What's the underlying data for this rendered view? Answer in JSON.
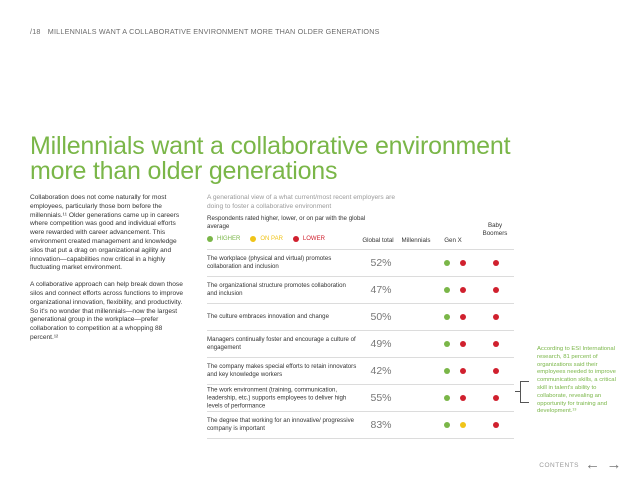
{
  "header": {
    "page_number": "/18",
    "section": "MILLENNIALS WANT A COLLABORATIVE ENVIRONMENT MORE THAN OLDER GENERATIONS"
  },
  "title": {
    "line1": "Millennials want a collaborative environment",
    "line2": "more than older generations"
  },
  "body": {
    "p1": "Collaboration does not come naturally for most employees, particularly those born before the millennials.¹¹ Older generations came up in careers where competition was good and individual efforts were rewarded with career advancement. This environment created management and knowledge silos that put a drag on organizational agility and innovation—capabilities now critical in a highly fluctuating market environment.",
    "p2": "A collaborative approach can help break down those silos and connect efforts across functions to improve organizational innovation, flexibility, and productivity. So it's no wonder that millennials—now the largest generational group in the workplace—prefer collaboration to competition at a whopping 88 percent.¹²"
  },
  "chart": {
    "subtitle": "A generational view of a what current/most recent employers are doing to foster a collaborative environment",
    "respondents": "Respondents rated higher, lower, or on par with the global average",
    "legend": {
      "higher": "HIGHER",
      "onpar": "ON PAR",
      "lower": "LOWER"
    },
    "columns": {
      "global": "Global total",
      "millennials": "Millennials",
      "genx": "Gen X",
      "boomers_1": "Baby",
      "boomers_2": "Boomers"
    }
  },
  "colors": {
    "higher": "#7ab648",
    "onpar": "#f0c419",
    "lower": "#d0202e",
    "accent": "#7ab648"
  },
  "rows": [
    {
      "label": "The workplace (physical and virtual) promotes collaboration and inclusion",
      "pct": "52%",
      "ratings": [
        "higher",
        "lower",
        "lower"
      ]
    },
    {
      "label": "The organizational structure promotes collaboration and inclusion",
      "pct": "47%",
      "ratings": [
        "higher",
        "lower",
        "lower"
      ]
    },
    {
      "label": "The culture embraces innovation and change",
      "pct": "50%",
      "ratings": [
        "higher",
        "lower",
        "lower"
      ]
    },
    {
      "label": "Managers continually foster and encourage a culture of engagement",
      "pct": "49%",
      "ratings": [
        "higher",
        "lower",
        "lower"
      ]
    },
    {
      "label": "The company makes special efforts to retain innovators and key knowledge workers",
      "pct": "42%",
      "ratings": [
        "higher",
        "lower",
        "lower"
      ]
    },
    {
      "label": "The work environment (training, communication, leadership, etc.) supports employees to deliver high levels of performance",
      "pct": "55%",
      "ratings": [
        "higher",
        "lower",
        "lower"
      ]
    },
    {
      "label": "The degree that working for an innovative/ progressive company is important",
      "pct": "83%",
      "ratings": [
        "higher",
        "onpar",
        "lower"
      ]
    }
  ],
  "aside": "According to ESI International research, 81 percent of organizations said their employees needed to improve communication skills, a critical skill in talent's ability to collaborate, revealing an opportunity for training and development.¹³",
  "footer": {
    "contents": "CONTENTS",
    "prev_icon": "←",
    "next_icon": "→"
  }
}
